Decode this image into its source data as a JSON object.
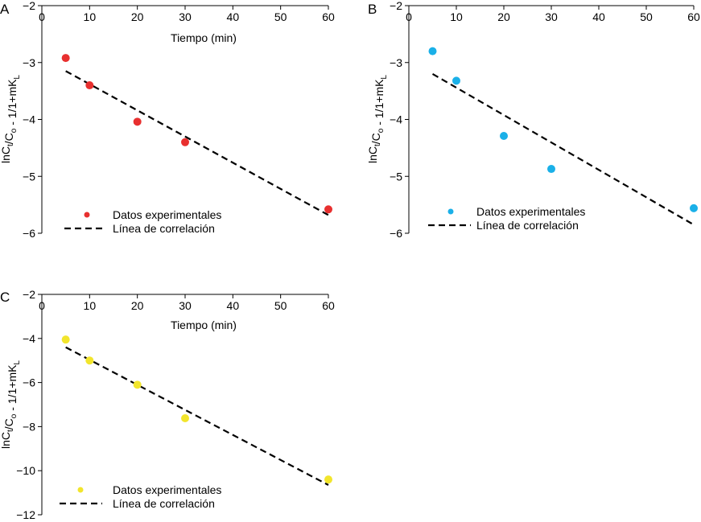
{
  "chart_data": [
    {
      "panel": "A",
      "type": "scatter",
      "xlabel": "Tiempo (min)",
      "ylabel": "lnC_t/C_o - 1/1+mK_L",
      "xlim": [
        0,
        60
      ],
      "ylim": [
        -6,
        -2
      ],
      "x_ticks": [
        "0",
        "10",
        "20",
        "30",
        "40",
        "50",
        "60"
      ],
      "y_ticks": [
        "−2",
        "−3",
        "−4",
        "−5",
        "−6"
      ],
      "color": "#e8302f",
      "series": [
        {
          "name": "Datos experimentales",
          "kind": "scatter",
          "x": [
            5,
            10,
            20,
            30,
            60
          ],
          "y": [
            -2.92,
            -3.4,
            -4.04,
            -4.4,
            -5.58
          ]
        },
        {
          "name": "Línea de correlación",
          "kind": "dashed-line",
          "x": [
            5,
            60
          ],
          "y": [
            -3.15,
            -5.68
          ]
        }
      ]
    },
    {
      "panel": "B",
      "type": "scatter",
      "xlabel": "",
      "ylabel": "lnC_t/C_o - 1/1+mK_L",
      "xlim": [
        0,
        60
      ],
      "ylim": [
        -6,
        -2
      ],
      "x_ticks": [
        "0",
        "10",
        "20",
        "30",
        "40",
        "50",
        "60"
      ],
      "y_ticks": [
        "−2",
        "−3",
        "−4",
        "−5",
        "−6"
      ],
      "color": "#1ab0e8",
      "series": [
        {
          "name": "Datos experimentales",
          "kind": "scatter",
          "x": [
            5,
            10,
            20,
            30,
            60
          ],
          "y": [
            -2.8,
            -3.32,
            -4.29,
            -4.87,
            -5.56
          ]
        },
        {
          "name": "Línea de correlación",
          "kind": "dashed-line",
          "x": [
            5,
            60
          ],
          "y": [
            -3.2,
            -5.85
          ]
        }
      ]
    },
    {
      "panel": "C",
      "type": "scatter",
      "xlabel": "Tiempo (min)",
      "ylabel": "lnC_t/C_o - 1/1+mK_L",
      "xlim": [
        0,
        60
      ],
      "ylim": [
        -12,
        -2
      ],
      "x_ticks": [
        "0",
        "10",
        "20",
        "30",
        "40",
        "50",
        "60"
      ],
      "y_ticks": [
        "−2",
        "−4",
        "−6",
        "−8",
        "−10",
        "−12"
      ],
      "color": "#f2e52c",
      "series": [
        {
          "name": "Datos experimentales",
          "kind": "scatter",
          "x": [
            5,
            10,
            20,
            30,
            60
          ],
          "y": [
            -4.05,
            -5,
            -6.1,
            -7.62,
            -10.4
          ]
        },
        {
          "name": "Línea de correlación",
          "kind": "dashed-line",
          "x": [
            5,
            60
          ],
          "y": [
            -4.4,
            -10.65
          ]
        }
      ]
    }
  ]
}
